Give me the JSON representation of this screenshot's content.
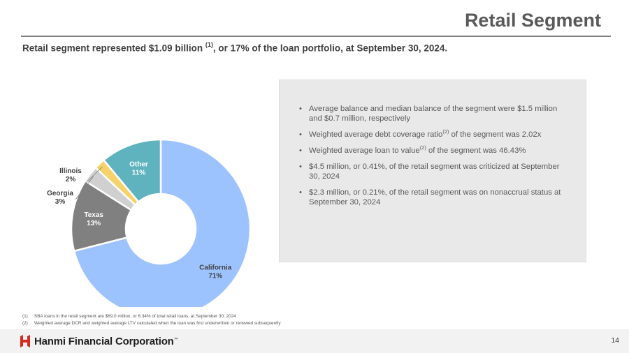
{
  "header": {
    "title": "Retail Segment",
    "subtitle_pre": "Retail segment represented $1.09 billion ",
    "subtitle_sup": "(1)",
    "subtitle_post": ", or 17% of the loan portfolio, at September 30, 2024."
  },
  "chart_data": {
    "type": "pie",
    "style": "donut",
    "categories": [
      "California",
      "Texas",
      "Georgia",
      "Illinois",
      "Other"
    ],
    "value_labels": [
      "71%",
      "13%",
      "3%",
      "2%",
      "11%"
    ],
    "values": [
      71,
      13,
      3,
      2,
      11
    ],
    "colors": [
      "#9dc3ff",
      "#808080",
      "#d0d0d0",
      "#f5d36a",
      "#5fb3be"
    ]
  },
  "info_box": {
    "bullets": [
      {
        "text": "Average balance and median balance of the segment were $1.5 million and $0.7 million, respectively"
      },
      {
        "pre": "Weighted average debt coverage ratio",
        "sup": "(2)",
        "post": " of the segment was 2.02x"
      },
      {
        "pre": "Weighted average loan to value",
        "sup": "(2)",
        "post": " of the segment was 46.43%"
      },
      {
        "text": "$4.5 million, or 0.41%, of the retail segment was criticized at September 30, 2024"
      },
      {
        "text": "$2.3 million, or 0.21%, of the retail segment was on nonaccrual status at September 30, 2024"
      }
    ]
  },
  "footnotes": [
    {
      "num": "(1)",
      "text": "SBA loans in the retail segment are $69.0 million, or 6.34% of total retail loans, at September 30, 2024"
    },
    {
      "num": "(2)",
      "text": "Weighted average DCR and weighted average LTV calculated when the loan was first underwritten or renewed subsequently"
    }
  ],
  "footer": {
    "logo_text": "Hanmi Financial Corporation",
    "logo_tm": "™",
    "page_number": "14",
    "brand_color": "#d52b1e"
  }
}
